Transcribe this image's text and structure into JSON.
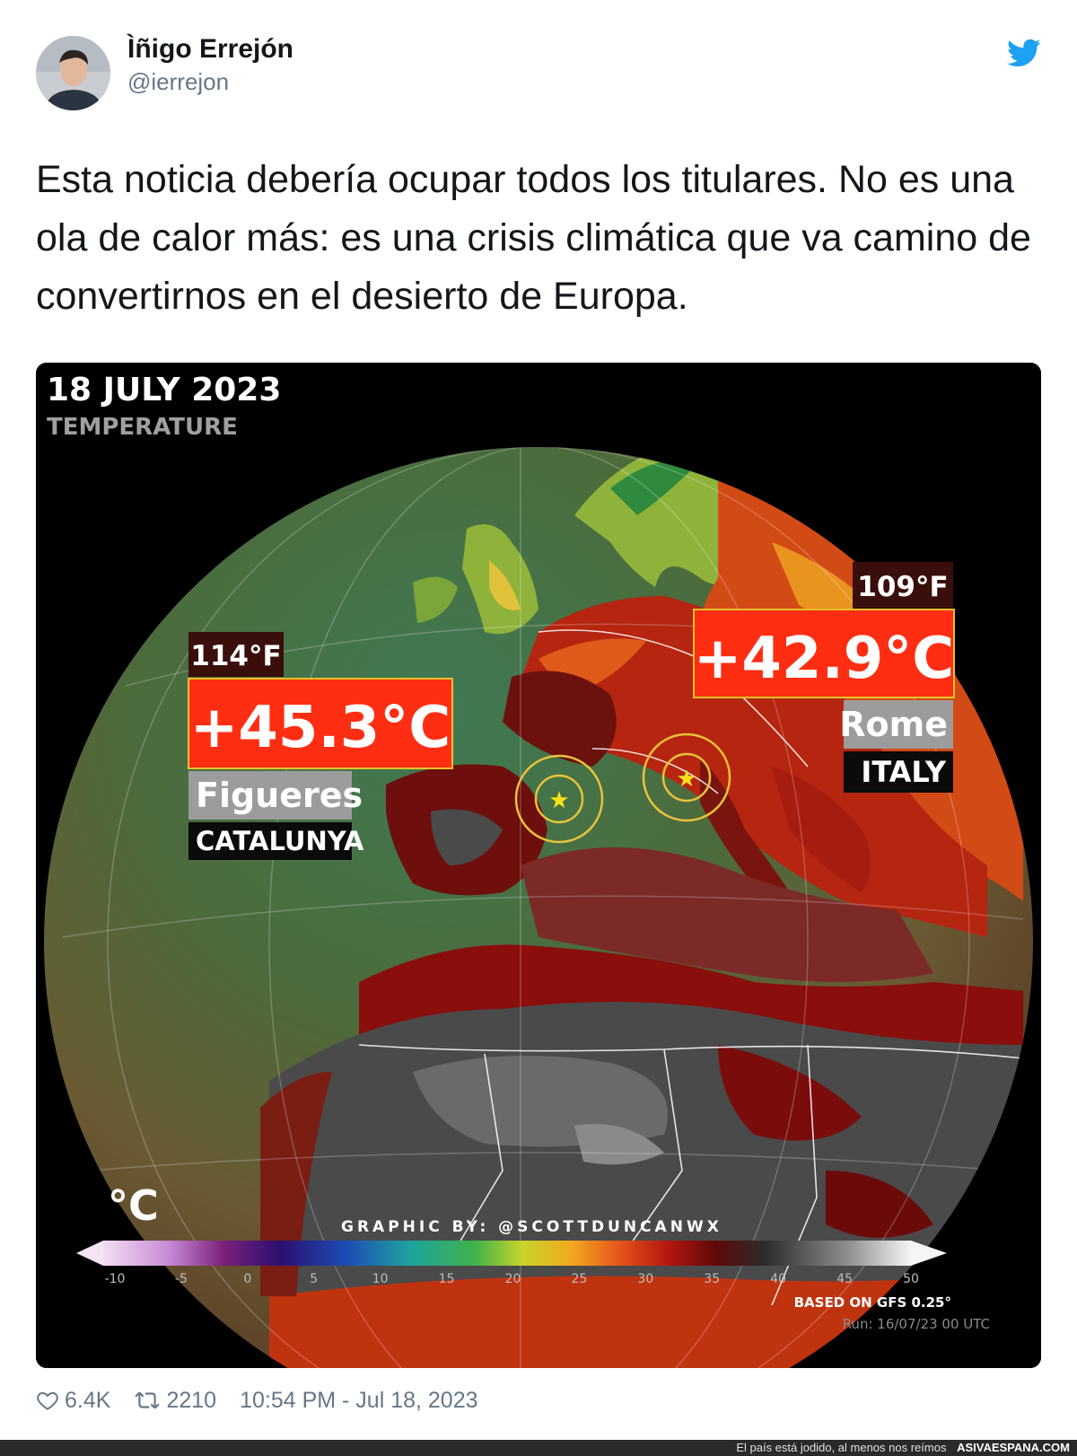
{
  "author": {
    "name": "Ìñigo Errejón",
    "handle": "@ierrejon"
  },
  "tweet": {
    "text": "Esta noticia debería ocupar todos los titulares. No es una ola de calor más: es una crisis climática que va camino de convertirnos en el desierto de Europa."
  },
  "media": {
    "date": "18 JULY 2023",
    "variable": "TEMPERATURE",
    "spot_left": {
      "fahrenheit": "114°F",
      "celsius": "+45.3°C",
      "city": "Figueres",
      "region": "CATALUNYA"
    },
    "spot_right": {
      "fahrenheit": "109°F",
      "celsius": "+42.9°C",
      "city": "Rome",
      "region": "ITALY"
    },
    "unit": "°C",
    "credit": "GRAPHIC BY: @SCOTTDUNCANWX",
    "scale_ticks": [
      "-10",
      "-5",
      "0",
      "5",
      "10",
      "15",
      "20",
      "25",
      "30",
      "35",
      "40",
      "45",
      "50"
    ],
    "model": "BASED ON GFS 0.25°",
    "run": "Run: 16/07/23 00 UTC"
  },
  "stats": {
    "likes": "6.4K",
    "retweets": "2210",
    "timestamp": "10:54 PM - Jul 18, 2023"
  },
  "site_bar": {
    "tagline": "El país está jodido, al menos nos reímos",
    "site": "ASIVAESPANA.COM"
  },
  "colors": {
    "twitter_blue": "#1da1f2",
    "label_red": "#ff2e12",
    "label_dark": "#3a0e0a",
    "heat_dark": "#6b0a0a",
    "desert_gray": "#5a5a5a",
    "ocean_green": "#3d6a48"
  }
}
